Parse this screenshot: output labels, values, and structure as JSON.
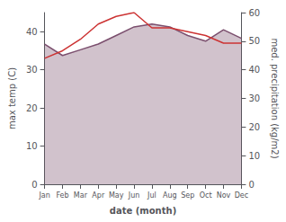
{
  "chart_data": {
    "type": "line",
    "categories": [
      "Jan",
      "Feb",
      "Mar",
      "Apr",
      "May",
      "Jun",
      "Jul",
      "Aug",
      "Sep",
      "Oct",
      "Nov",
      "Dec"
    ],
    "series": [
      {
        "type": "area",
        "axis": "y2",
        "color": "#7b4f6e",
        "values": [
          49,
          45,
          47,
          49,
          52,
          55,
          56,
          55,
          52,
          50,
          54,
          51
        ]
      },
      {
        "type": "line",
        "axis": "y",
        "color": "#cc3333",
        "values": [
          33,
          35,
          38,
          42,
          44,
          45,
          41,
          41,
          40,
          39,
          37,
          37
        ]
      }
    ],
    "xlabel": "date (month)",
    "ylabel": "max temp (C)",
    "y2label": "med. precipitation (kg/m2)",
    "ylim": [
      0,
      45
    ],
    "yticks": [
      0,
      10,
      20,
      30,
      40
    ],
    "y2lim": [
      0,
      60
    ],
    "y2ticks": [
      0,
      10,
      20,
      30,
      40,
      50,
      60
    ],
    "grid": false
  }
}
